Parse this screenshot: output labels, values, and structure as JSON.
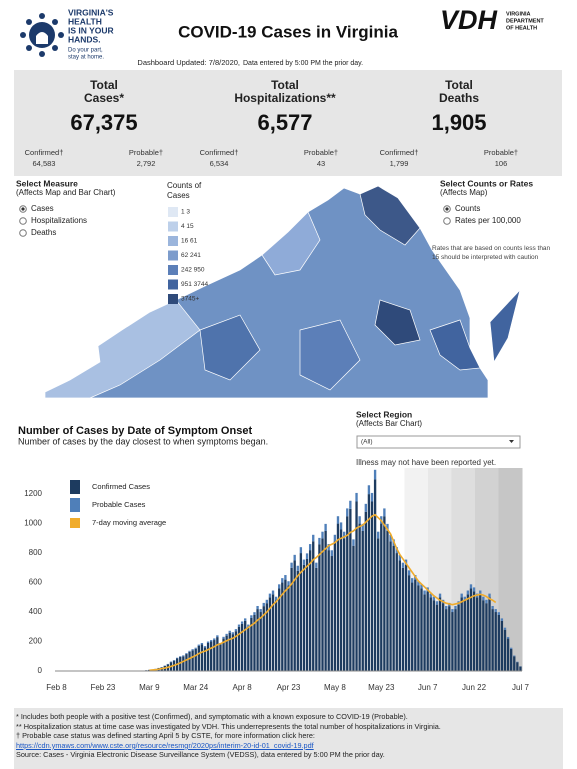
{
  "header": {
    "logo_lines": [
      "VIRGINIA'S",
      "HEALTH",
      "IS IN YOUR",
      "HANDS."
    ],
    "logo_tagline": [
      "Do your part,",
      "stay at home."
    ],
    "title": "COVID-19 Cases in Virginia",
    "vdh": "VDH",
    "vdh_sub": [
      "VIRGINIA",
      "DEPARTMENT",
      "OF HEALTH"
    ],
    "updated": "Dashboard Updated: 7/8/2020,",
    "updated_note": "Data entered by 5:00 PM the prior day."
  },
  "summary": [
    {
      "title_lines": [
        "Total",
        "Cases*"
      ],
      "total": "67,375",
      "confirmed_label": "Confirmed†",
      "confirmed": "64,583",
      "probable_label": "Probable†",
      "probable": "2,792"
    },
    {
      "title_lines": [
        "Total",
        "Hospitalizations**"
      ],
      "total": "6,577",
      "confirmed_label": "Confirmed†",
      "confirmed": "6,534",
      "probable_label": "Probable†",
      "probable": "43"
    },
    {
      "title_lines": [
        "Total",
        "Deaths"
      ],
      "total": "1,905",
      "confirmed_label": "Confirmed†",
      "confirmed": "1,799",
      "probable_label": "Probable†",
      "probable": "106"
    }
  ],
  "measure": {
    "title": "Select Measure",
    "subtitle": "(Affects Map and Bar Chart)",
    "options": [
      "Cases",
      "Hospitalizations",
      "Deaths"
    ]
  },
  "counts_legend": {
    "title_lines": [
      "Counts of",
      "Cases"
    ],
    "bins": [
      "1   3",
      "4   15",
      "16   61",
      "62   241",
      "242   950",
      "951   3744",
      "3745+"
    ]
  },
  "rates": {
    "title": "Select Counts or Rates",
    "subtitle": "(Affects Map)",
    "options": [
      "Counts",
      "Rates per 100,000"
    ],
    "note": "Rates that are based on counts less than 15 should be interpreted with caution"
  },
  "region": {
    "title": "Select Region",
    "subtitle": "(Affects Bar Chart)",
    "selected": "(All)"
  },
  "chart_data": {
    "type": "bar",
    "stacked": true,
    "title": "Number of Cases by Date of Symptom Onset",
    "subtitle": "Number of cases by the day closest to when symptoms began.",
    "annotation": "Illness may not have been reported yet.",
    "categories": [
      "Feb 8",
      null,
      null,
      null,
      null,
      null,
      null,
      null,
      null,
      null,
      null,
      null,
      null,
      null,
      null,
      "Feb 23",
      null,
      null,
      null,
      null,
      null,
      null,
      null,
      null,
      null,
      null,
      null,
      null,
      null,
      null,
      "Mar 9",
      null,
      null,
      null,
      null,
      null,
      null,
      null,
      null,
      null,
      null,
      null,
      null,
      null,
      null,
      "Mar 24",
      null,
      null,
      null,
      null,
      null,
      null,
      null,
      null,
      null,
      null,
      null,
      null,
      null,
      null,
      "Apr 8",
      null,
      null,
      null,
      null,
      null,
      null,
      null,
      null,
      null,
      null,
      null,
      null,
      null,
      null,
      "Apr 23",
      null,
      null,
      null,
      null,
      null,
      null,
      null,
      null,
      null,
      null,
      null,
      null,
      null,
      null,
      "May 8",
      null,
      null,
      null,
      null,
      null,
      null,
      null,
      null,
      null,
      null,
      null,
      null,
      null,
      null,
      "May 23",
      null,
      null,
      null,
      null,
      null,
      null,
      null,
      null,
      null,
      null,
      null,
      null,
      null,
      null,
      "Jun 7",
      null,
      null,
      null,
      null,
      null,
      null,
      null,
      null,
      null,
      null,
      null,
      null,
      null,
      null,
      "Jun 22",
      null,
      null,
      null,
      null,
      null,
      null,
      null,
      null,
      null,
      null,
      null,
      null,
      null,
      null,
      "Jul 7"
    ],
    "series": [
      {
        "name": "Confirmed Cases",
        "color": "#1d3b5f",
        "values": [
          0,
          0,
          0,
          0,
          0,
          0,
          0,
          0,
          0,
          0,
          0,
          0,
          0,
          0,
          0,
          0,
          0,
          0,
          0,
          0,
          0,
          0,
          1,
          0,
          1,
          1,
          2,
          2,
          3,
          5,
          8,
          10,
          14,
          20,
          25,
          35,
          45,
          60,
          70,
          85,
          95,
          100,
          115,
          130,
          140,
          150,
          170,
          180,
          160,
          190,
          200,
          210,
          230,
          180,
          220,
          240,
          260,
          250,
          270,
          300,
          320,
          340,
          300,
          360,
          380,
          420,
          400,
          440,
          460,
          500,
          520,
          480,
          560,
          600,
          620,
          580,
          700,
          750,
          680,
          800,
          720,
          760,
          820,
          880,
          700,
          860,
          900,
          950,
          820,
          780,
          880,
          1000,
          960,
          900,
          1050,
          1100,
          850,
          1150,
          1000,
          950,
          1080,
          1200,
          1150,
          1300,
          900,
          1000,
          1050,
          950,
          880,
          850,
          800,
          750,
          700,
          720,
          650,
          600,
          620,
          580,
          560,
          520,
          540,
          500,
          480,
          450,
          500,
          460,
          420,
          440,
          400,
          420,
          450,
          500,
          480,
          520,
          560,
          540,
          500,
          520,
          480,
          460,
          500,
          420,
          400,
          380,
          340,
          280,
          220,
          150,
          100,
          60,
          30
        ]
      },
      {
        "name": "Probable Cases",
        "color": "#4f7fb9",
        "values": [
          0,
          0,
          0,
          0,
          0,
          0,
          0,
          0,
          0,
          0,
          0,
          0,
          0,
          0,
          0,
          0,
          0,
          0,
          0,
          0,
          0,
          0,
          0,
          0,
          0,
          0,
          0,
          0,
          0,
          0,
          0,
          0,
          1,
          1,
          2,
          2,
          3,
          4,
          4,
          5,
          5,
          6,
          6,
          7,
          8,
          8,
          9,
          10,
          9,
          10,
          10,
          11,
          12,
          10,
          12,
          12,
          13,
          13,
          14,
          15,
          16,
          17,
          15,
          18,
          19,
          21,
          20,
          22,
          23,
          25,
          26,
          24,
          28,
          30,
          31,
          29,
          35,
          38,
          34,
          40,
          36,
          38,
          41,
          44,
          35,
          43,
          45,
          48,
          41,
          39,
          44,
          50,
          48,
          45,
          53,
          55,
          43,
          58,
          50,
          48,
          54,
          60,
          58,
          65,
          45,
          50,
          53,
          48,
          44,
          43,
          40,
          38,
          35,
          36,
          33,
          30,
          31,
          29,
          28,
          26,
          27,
          25,
          24,
          23,
          25,
          23,
          21,
          22,
          20,
          21,
          23,
          25,
          24,
          26,
          28,
          27,
          25,
          26,
          24,
          23,
          25,
          21,
          20,
          19,
          17,
          14,
          11,
          8,
          5,
          3,
          2
        ]
      },
      {
        "name": "7-day moving average",
        "color": "#f0ac2c",
        "kind": "line",
        "values": [
          null,
          null,
          null,
          null,
          null,
          null,
          null,
          null,
          null,
          null,
          null,
          null,
          null,
          null,
          null,
          null,
          null,
          null,
          null,
          null,
          null,
          null,
          null,
          null,
          null,
          null,
          null,
          null,
          null,
          null,
          5,
          7,
          9,
          12,
          16,
          20,
          25,
          31,
          38,
          46,
          55,
          65,
          75,
          85,
          95,
          105,
          118,
          128,
          135,
          145,
          155,
          165,
          178,
          185,
          195,
          205,
          215,
          222,
          235,
          250,
          265,
          280,
          295,
          310,
          325,
          345,
          360,
          380,
          400,
          425,
          450,
          470,
          495,
          520,
          545,
          565,
          590,
          620,
          645,
          670,
          690,
          710,
          730,
          755,
          770,
          790,
          810,
          830,
          850,
          860,
          870,
          890,
          900,
          910,
          920,
          940,
          950,
          970,
          980,
          990,
          1010,
          1030,
          1050,
          1060,
          1040,
          1020,
          990,
          960,
          930,
          880,
          830,
          790,
          760,
          730,
          700,
          670,
          640,
          610,
          590,
          570,
          550,
          530,
          510,
          495,
          480,
          470,
          460,
          455,
          450,
          455,
          460,
          470,
          480,
          490,
          500,
          510,
          515,
          520,
          515,
          505,
          490,
          480,
          465,
          null,
          null,
          null,
          null,
          null,
          null,
          null,
          null
        ]
      }
    ],
    "ylim": [
      0,
      1350
    ],
    "yticks": [
      0,
      200,
      400,
      600,
      800,
      1000,
      1200
    ],
    "grid": false,
    "legend": "top-left"
  },
  "footer": {
    "lines": [
      "* Includes both people with a positive test (Confirmed), and symptomatic with a known exposure to COVID-19 (Probable).",
      "** Hospitalization status at time case was investigated by VDH. This underrepresents the total number of hospitalizations in Virginia.",
      "† Probable case status was defined starting April 5 by CSTE, for more information click here:"
    ],
    "link": "https://cdn.ymaws.com/www.cste.org/resource/resmgr/2020ps/interim-20-id-01_covid-19.pdf",
    "source": "Source:  Cases - Virginia Electronic Disease Surveillance System (VEDSS), data entered by 5:00 PM the prior day."
  }
}
